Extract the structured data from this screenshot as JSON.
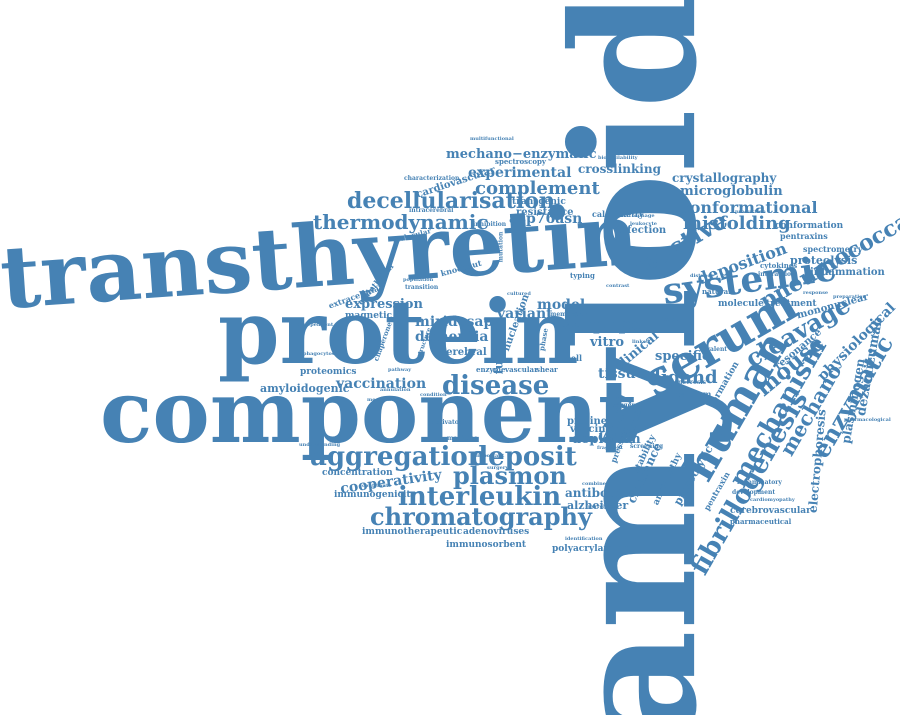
{
  "cloud": {
    "colors": {
      "word": "#4682b4",
      "background": "#ffffff"
    },
    "words": [
      {
        "id": "amyloid",
        "text": "amyloid"
      },
      {
        "id": "transthyretin",
        "text": "transthyretin"
      },
      {
        "id": "protein",
        "text": "protein"
      },
      {
        "id": "component",
        "text": "component"
      },
      {
        "id": "systemic",
        "text": "systemic"
      },
      {
        "id": "serum",
        "text": "serum"
      },
      {
        "id": "human",
        "text": "human"
      },
      {
        "id": "aggregation",
        "text": "aggregation"
      },
      {
        "id": "deposit",
        "text": "deposit"
      },
      {
        "id": "interleukin",
        "text": "interleukin"
      },
      {
        "id": "chromatography",
        "text": "chromatography"
      },
      {
        "id": "plasmon",
        "text": "plasmon"
      },
      {
        "id": "disease",
        "text": "disease"
      },
      {
        "id": "fibrillogenesis",
        "text": "fibrillogenesis"
      },
      {
        "id": "mechanism",
        "text": "mechanism"
      },
      {
        "id": "mouse",
        "text": "mouse"
      },
      {
        "id": "cleavage",
        "text": "cleavage"
      },
      {
        "id": "enzymatic",
        "text": "enzymatic"
      },
      {
        "id": "mechano",
        "text": "mechano"
      },
      {
        "id": "reactive",
        "text": "reactive"
      },
      {
        "id": "pneumococcal",
        "text": "pneumococcal"
      },
      {
        "id": "thermodynamic",
        "text": "thermodynamic"
      },
      {
        "id": "decellularisation",
        "text": "decellularisation"
      },
      {
        "id": "complement",
        "text": "complement"
      },
      {
        "id": "experimental",
        "text": "experimental"
      },
      {
        "id": "mechano-enzymatic",
        "text": "mechano−enzymatic"
      },
      {
        "id": "conformational",
        "text": "conformational"
      },
      {
        "id": "misfolding",
        "text": "misfolding"
      },
      {
        "id": "microglobulin",
        "text": "microglobulin"
      },
      {
        "id": "crystallography",
        "text": "crystallography"
      },
      {
        "id": "crosslinking",
        "text": "crosslinking"
      },
      {
        "id": "asp76asn",
        "text": "asp76asn"
      },
      {
        "id": "resistance",
        "text": "resistance"
      },
      {
        "id": "transgenic",
        "text": "transgenic"
      },
      {
        "id": "infection",
        "text": "infection"
      },
      {
        "id": "deposition",
        "text": "deposition"
      },
      {
        "id": "proteolysis",
        "text": "proteolysis"
      },
      {
        "id": "inflammation",
        "text": "inflammation"
      },
      {
        "id": "conformation",
        "text": "conformation"
      },
      {
        "id": "pentraxins",
        "text": "pentraxins"
      },
      {
        "id": "spectrometry",
        "text": "spectrometry"
      },
      {
        "id": "cytokines",
        "text": "cytokines"
      },
      {
        "id": "physiological",
        "text": "physiological"
      },
      {
        "id": "plasminogen",
        "text": "plasminogen"
      },
      {
        "id": "dezamizumab",
        "text": "dezamizumab"
      },
      {
        "id": "electrophoresis",
        "text": "electrophoresis"
      },
      {
        "id": "mononuclear",
        "text": "mononuclear"
      },
      {
        "id": "treatment",
        "text": "treatment"
      },
      {
        "id": "molecule",
        "text": "molecule"
      },
      {
        "id": "resonance",
        "text": "resonance"
      },
      {
        "id": "vaccination",
        "text": "vaccination"
      },
      {
        "id": "dementia",
        "text": "dementia"
      },
      {
        "id": "miridesap",
        "text": "miridesap"
      },
      {
        "id": "expression",
        "text": "expression"
      },
      {
        "id": "amyloidogenic",
        "text": "amyloidogenic"
      },
      {
        "id": "proteomics",
        "text": "proteomics"
      },
      {
        "id": "magnetic",
        "text": "magnetic"
      },
      {
        "id": "variant",
        "text": "variant"
      },
      {
        "id": "model",
        "text": "model"
      },
      {
        "id": "ligand",
        "text": "ligand"
      },
      {
        "id": "cphpc",
        "text": "cphpc"
      },
      {
        "id": "vitro",
        "text": "vitro"
      },
      {
        "id": "tissue",
        "text": "tissue"
      },
      {
        "id": "fibril",
        "text": "fibril"
      },
      {
        "id": "specific",
        "text": "specific"
      },
      {
        "id": "clinical",
        "text": "clinical"
      },
      {
        "id": "cerebral",
        "text": "cerebral"
      },
      {
        "id": "function",
        "text": "function"
      },
      {
        "id": "nucleation",
        "text": "nucleation"
      },
      {
        "id": "cooperativity",
        "text": "cooperativity"
      },
      {
        "id": "concentration",
        "text": "concentration"
      },
      {
        "id": "immunogenicity",
        "text": "immunogenicity"
      },
      {
        "id": "antibodies",
        "text": "antibodies"
      },
      {
        "id": "alzheimer",
        "text": "alzheimer"
      },
      {
        "id": "depletion",
        "text": "depletion"
      },
      {
        "id": "proline",
        "text": "proline"
      },
      {
        "id": "vaccine",
        "text": "vaccine"
      },
      {
        "id": "cerebrovascular",
        "text": "cerebrovascular"
      },
      {
        "id": "pharmaceutical",
        "text": "pharmaceutical"
      },
      {
        "id": "proteolytic",
        "text": "proteolytic"
      },
      {
        "id": "pentraxin",
        "text": "pentraxin"
      },
      {
        "id": "clearance",
        "text": "clearance"
      },
      {
        "id": "angiopathy",
        "text": "angiopathy"
      },
      {
        "id": "stability",
        "text": "stability"
      },
      {
        "id": "immunotherapeutic",
        "text": "immunotherapeutic"
      },
      {
        "id": "adenoviruses",
        "text": "adenoviruses"
      },
      {
        "id": "immunosorbent",
        "text": "immunosorbent"
      },
      {
        "id": "polyacrylamide",
        "text": "polyacrylamide"
      },
      {
        "id": "identification",
        "text": "identification"
      },
      {
        "id": "cardiovascular",
        "text": "cardiovascular"
      },
      {
        "id": "characterization",
        "text": "characterization"
      },
      {
        "id": "spectroscopy",
        "text": "spectroscopy"
      },
      {
        "id": "calorimetry",
        "text": "calorimetry"
      },
      {
        "id": "endothelial",
        "text": "endothelial"
      },
      {
        "id": "extracellular",
        "text": "extracellular"
      },
      {
        "id": "intracerebral",
        "text": "intracerebral"
      },
      {
        "id": "molecular",
        "text": "molecular"
      },
      {
        "id": "knockout",
        "text": "knockout"
      },
      {
        "id": "transition",
        "text": "transition"
      },
      {
        "id": "population",
        "text": "population"
      },
      {
        "id": "chaperone",
        "text": "chaperone"
      },
      {
        "id": "structure",
        "text": "structure"
      },
      {
        "id": "enzyme",
        "text": "enzyme"
      },
      {
        "id": "vascular",
        "text": "vascular"
      },
      {
        "id": "shear",
        "text": "shear"
      },
      {
        "id": "phase",
        "text": "phase"
      },
      {
        "id": "cell",
        "text": "cell"
      },
      {
        "id": "type",
        "text": "type"
      },
      {
        "id": "activator",
        "text": "activator"
      },
      {
        "id": "medicine",
        "text": "medicine"
      },
      {
        "id": "condition",
        "text": "condition"
      },
      {
        "id": "mutation",
        "text": "mutation"
      },
      {
        "id": "screening",
        "text": "screening"
      },
      {
        "id": "plasmin",
        "text": "plasmin"
      },
      {
        "id": "pressure",
        "text": "pressure"
      },
      {
        "id": "formation",
        "text": "formation"
      },
      {
        "id": "natural",
        "text": "natural"
      },
      {
        "id": "calcium",
        "text": "calcium"
      },
      {
        "id": "necrosis",
        "text": "necrosis"
      },
      {
        "id": "inflammatory",
        "text": "inflammatory"
      },
      {
        "id": "development",
        "text": "development"
      },
      {
        "id": "cardiomyopathy",
        "text": "cardiomyopathy"
      },
      {
        "id": "pharmacological",
        "text": "pharmacological"
      },
      {
        "id": "interaction",
        "text": "interaction"
      },
      {
        "id": "preparation",
        "text": "preparation"
      },
      {
        "id": "response",
        "text": "response"
      },
      {
        "id": "distance",
        "text": "distance"
      },
      {
        "id": "macrophage",
        "text": "macrophage"
      },
      {
        "id": "leukocyte",
        "text": "leukocyte"
      },
      {
        "id": "bioavailability",
        "text": "bioavailability"
      },
      {
        "id": "multifunctional",
        "text": "multifunctional"
      },
      {
        "id": "understanding",
        "text": "understanding"
      },
      {
        "id": "phagocytosis",
        "text": "phagocytosis"
      },
      {
        "id": "contribute",
        "text": "contribute"
      },
      {
        "id": "important",
        "text": "important"
      },
      {
        "id": "surgery",
        "text": "surgery"
      },
      {
        "id": "fragment",
        "text": "fragment"
      },
      {
        "id": "trigger",
        "text": "trigger"
      },
      {
        "id": "combined",
        "text": "combined"
      },
      {
        "id": "pyrrolidine",
        "text": "pyrrolidine"
      },
      {
        "id": "production",
        "text": "production"
      },
      {
        "id": "typing",
        "text": "typing"
      },
      {
        "id": "cultured",
        "text": "cultured"
      },
      {
        "id": "memory",
        "text": "memory"
      },
      {
        "id": "drug",
        "text": "drug"
      },
      {
        "id": "target",
        "text": "target"
      },
      {
        "id": "contrast",
        "text": "contrast"
      },
      {
        "id": "linked",
        "text": "linked"
      },
      {
        "id": "bivalent",
        "text": "bivalent"
      },
      {
        "id": "inhibition",
        "text": "inhibition"
      },
      {
        "id": "independent",
        "text": "independent"
      },
      {
        "id": "annulation",
        "text": "annulation"
      },
      {
        "id": "pathway",
        "text": "pathway"
      },
      {
        "id": "mechanical",
        "text": "mechanical"
      }
    ]
  }
}
